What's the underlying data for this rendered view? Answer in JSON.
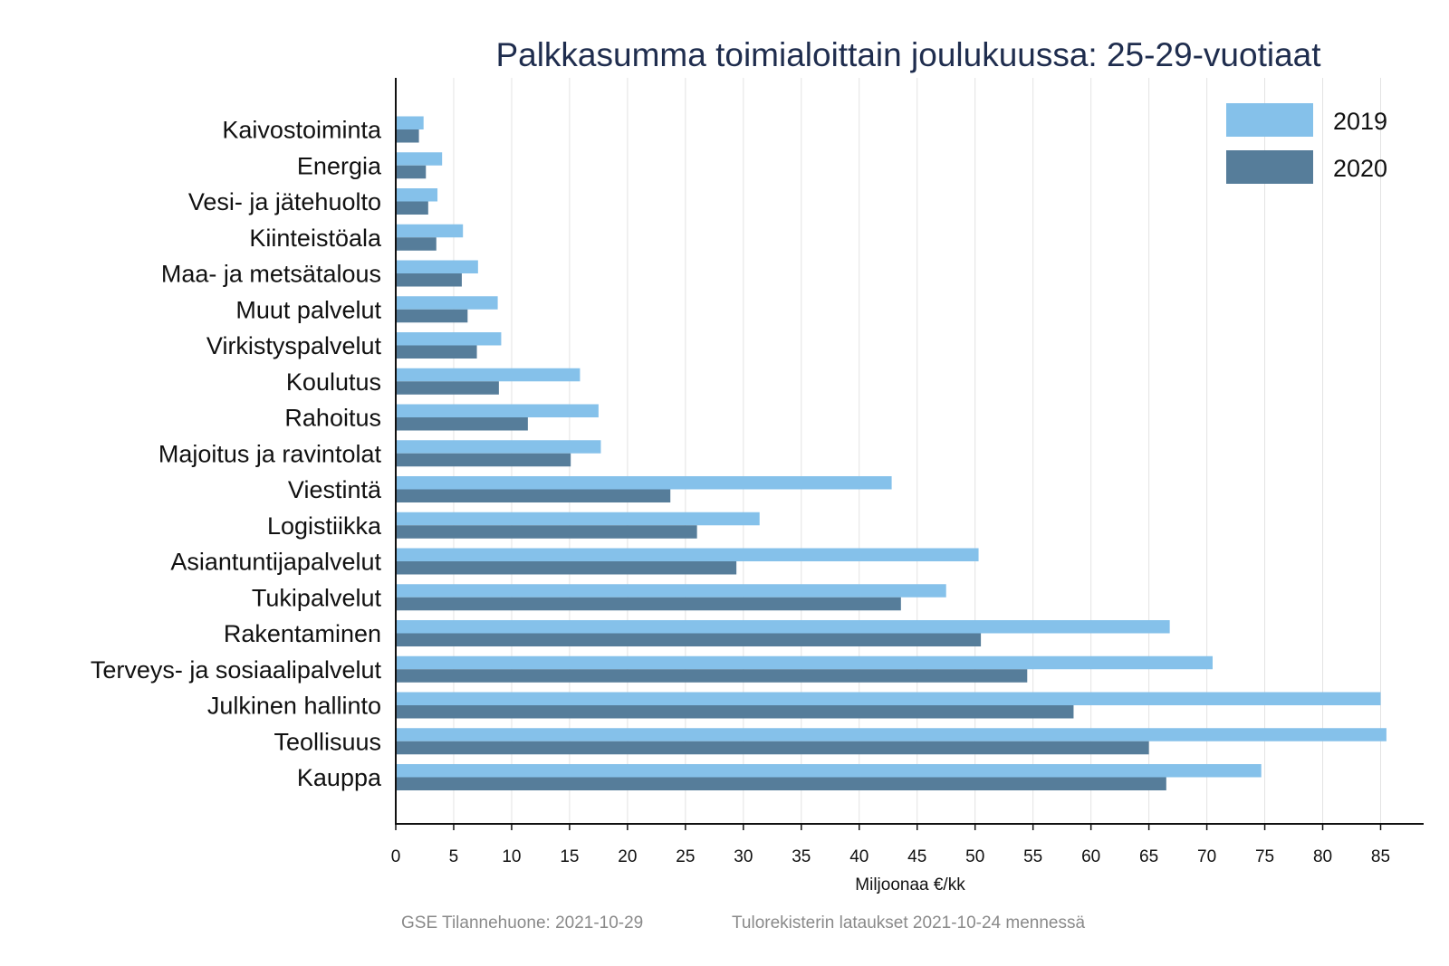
{
  "chart_data": {
    "type": "bar",
    "orientation": "horizontal",
    "title": "Palkkasumma toimialoittain joulukuussa: 25-29-vuotiaat",
    "xlabel": "Miljoonaa €/kk",
    "ylabel": "",
    "xlim": [
      0,
      88
    ],
    "xticks": [
      0,
      5,
      10,
      15,
      20,
      25,
      30,
      35,
      40,
      45,
      50,
      55,
      60,
      65,
      70,
      75,
      80,
      85
    ],
    "grid": "vertical",
    "legend_position": "top-right",
    "categories": [
      "Kaivostoiminta",
      "Energia",
      "Vesi- ja jätehuolto",
      "Kiinteistöala",
      "Maa- ja metsätalous",
      "Muut palvelut",
      "Virkistyspalvelut",
      "Koulutus",
      "Rahoitus",
      "Majoitus ja ravintolat",
      "Viestintä",
      "Logistiikka",
      "Asiantuntijapalvelut",
      "Tukipalvelut",
      "Rakentaminen",
      "Terveys- ja sosiaalipalvelut",
      "Julkinen hallinto",
      "Teollisuus",
      "Kauppa"
    ],
    "series": [
      {
        "name": "2019",
        "color": "#85c1ea",
        "values": [
          2.4,
          4.0,
          3.6,
          5.8,
          7.1,
          8.8,
          9.1,
          15.9,
          17.5,
          17.7,
          42.8,
          31.4,
          50.3,
          47.5,
          66.8,
          70.5,
          85.0,
          85.5,
          74.7
        ]
      },
      {
        "name": "2020",
        "color": "#567d9a",
        "values": [
          2.0,
          2.6,
          2.8,
          3.5,
          5.7,
          6.2,
          7.0,
          8.9,
          11.4,
          15.1,
          23.7,
          26.0,
          29.4,
          43.6,
          50.5,
          54.5,
          58.5,
          65.0,
          66.5
        ]
      }
    ]
  },
  "footer": {
    "source": "GSE Tilannehuone: 2021-10-29",
    "note": "Tulorekisterin lataukset 2021-10-24 mennessä"
  }
}
